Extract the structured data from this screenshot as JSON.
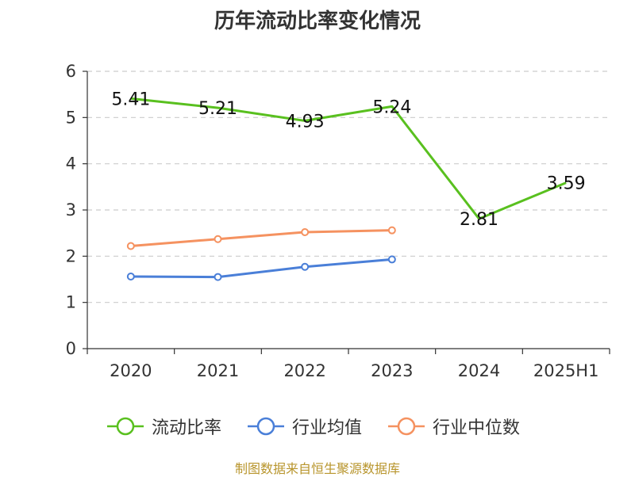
{
  "title": "历年流动比率变化情况",
  "source": "制图数据来自恒生聚源数据库",
  "colors": {
    "current_ratio": "#59c01f",
    "industry_mean": "#4a7fd8",
    "industry_median": "#f59260",
    "grid": "#cccccc",
    "axis": "#333333"
  },
  "chart_data": {
    "type": "line",
    "categories": [
      "2020",
      "2021",
      "2022",
      "2023",
      "2024",
      "2025H1"
    ],
    "ylim": [
      0,
      6
    ],
    "yticks": [
      "0",
      "1",
      "2",
      "3",
      "4",
      "5",
      "6"
    ],
    "grid": true,
    "legend_position": "bottom",
    "series": [
      {
        "name": "流动比率",
        "values": [
          5.41,
          5.21,
          4.93,
          5.24,
          2.81,
          3.59
        ],
        "labels": [
          "5.41",
          "5.21",
          "4.93",
          "5.24",
          "2.81",
          "3.59"
        ],
        "markers": false
      },
      {
        "name": "行业均值",
        "values": [
          1.56,
          1.55,
          1.77,
          1.93,
          null,
          null
        ],
        "markers": true
      },
      {
        "name": "行业中位数",
        "values": [
          2.22,
          2.37,
          2.52,
          2.56,
          null,
          null
        ],
        "markers": true
      }
    ]
  }
}
